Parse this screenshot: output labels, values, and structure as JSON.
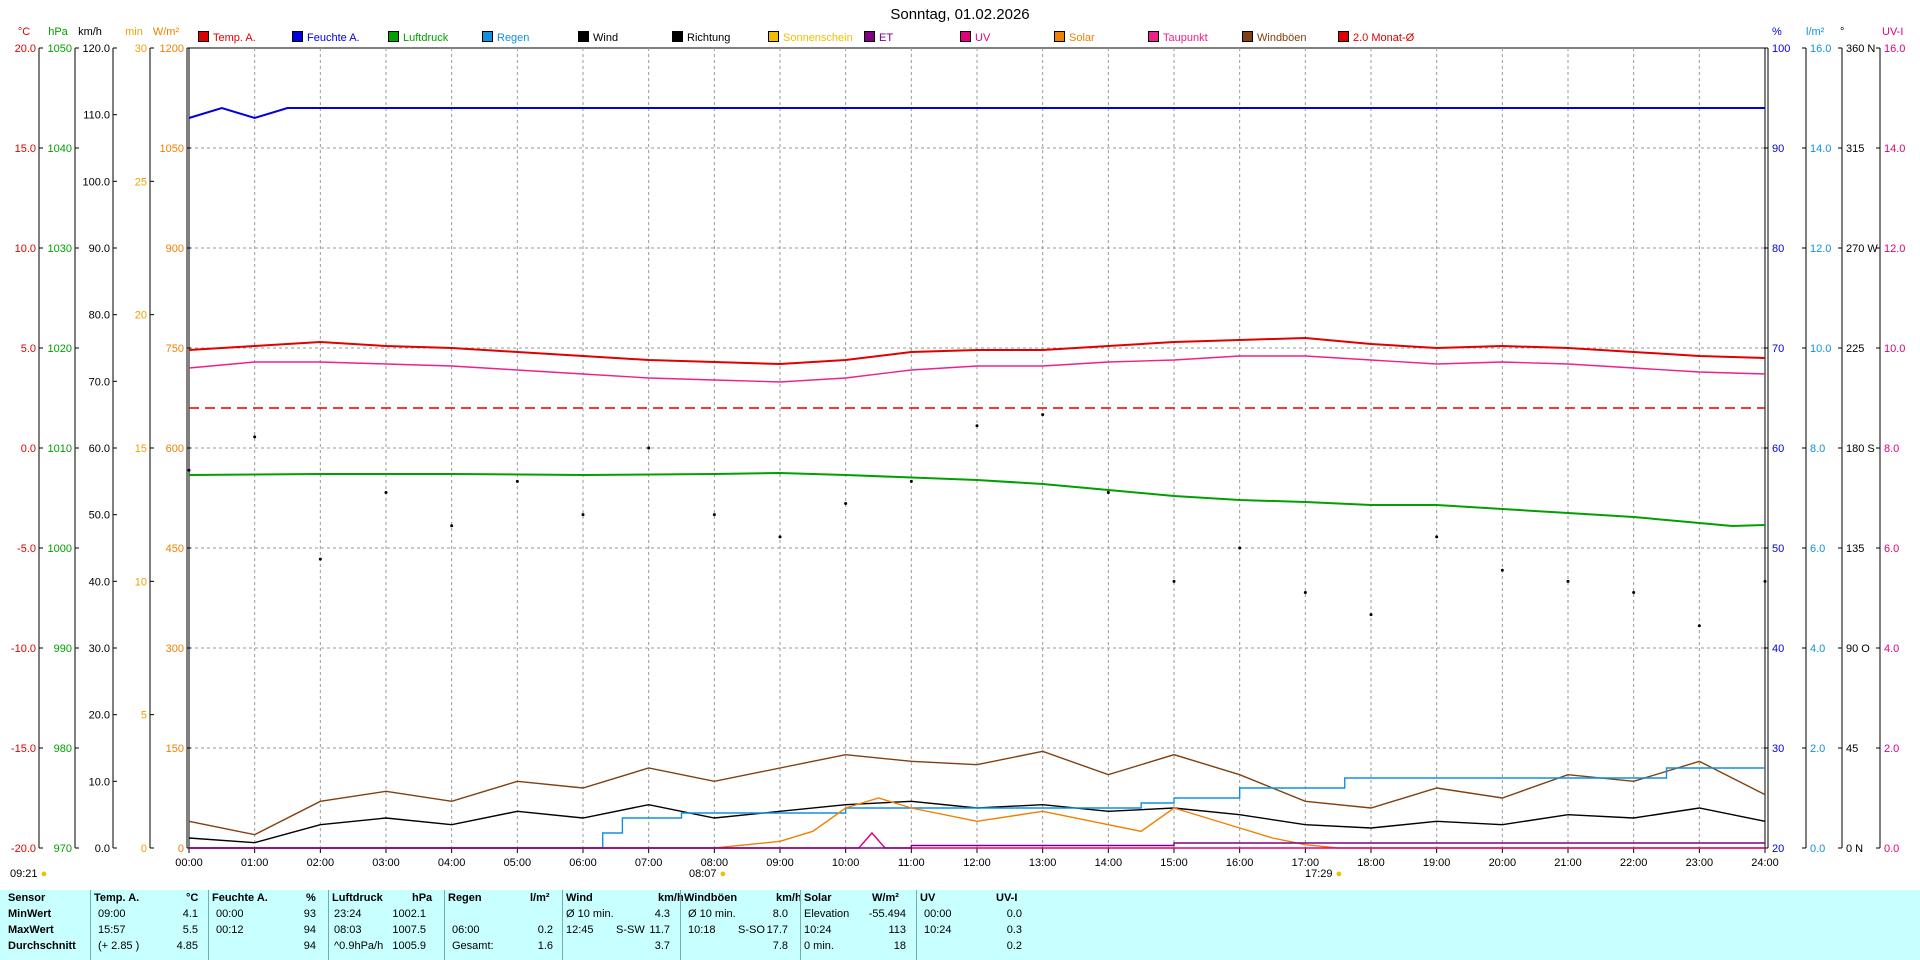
{
  "title": "Sonntag, 01.02.2026",
  "legend": [
    {
      "label": "Temp. A.",
      "color": "#e00000"
    },
    {
      "label": "Feuchte A.",
      "color": "#0000e0"
    },
    {
      "label": "Luftdruck",
      "color": "#00a000"
    },
    {
      "label": "Regen",
      "color": "#1090e0"
    },
    {
      "label": "Wind",
      "color": "#000000"
    },
    {
      "label": "Richtung",
      "color": "#000000"
    },
    {
      "label": "Sonnenschein",
      "color": "#f0c000"
    },
    {
      "label": "ET",
      "color": "#800080"
    },
    {
      "label": "UV",
      "color": "#e0007a"
    },
    {
      "label": "Solar",
      "color": "#f08000"
    },
    {
      "label": "Taupunkt",
      "color": "#f0208a"
    },
    {
      "label": "Windböen",
      "color": "#804010"
    },
    {
      "label": "2.0 Monat-Ø",
      "color": "#e00000"
    }
  ],
  "axis_units": {
    "temp": "°C",
    "hpa": "hPa",
    "kmh": "km/h",
    "min": "min",
    "wm2": "W/m²",
    "pct": "%",
    "lm2": "l/m²",
    "deg": "°",
    "uvi": "UV-I"
  },
  "sun": {
    "sunrise": "08:07",
    "sunset": "17:29",
    "now": "09:21"
  },
  "chart_data": {
    "type": "line",
    "x_label": "",
    "x_ticks": [
      "00:00",
      "01:00",
      "02:00",
      "03:00",
      "04:00",
      "05:00",
      "06:00",
      "07:00",
      "08:00",
      "09:00",
      "10:00",
      "11:00",
      "12:00",
      "13:00",
      "14:00",
      "15:00",
      "16:00",
      "17:00",
      "18:00",
      "19:00",
      "20:00",
      "21:00",
      "22:00",
      "23:00",
      "24:00"
    ],
    "axes": {
      "temp": {
        "ticks": [
          "20.0",
          "15.0",
          "10.0",
          "5.0",
          "0.0",
          "-5.0",
          "-10.0",
          "-15.0",
          "-20.0"
        ],
        "range": [
          -20,
          20
        ]
      },
      "hpa": {
        "ticks": [
          "1050",
          "1040",
          "1030",
          "1020",
          "1010",
          "1000",
          "990",
          "980",
          "970"
        ],
        "range": [
          970,
          1050
        ]
      },
      "kmh": {
        "ticks": [
          "120.0",
          "110.0",
          "100.0",
          "90.0",
          "80.0",
          "70.0",
          "60.0",
          "50.0",
          "40.0",
          "30.0",
          "20.0",
          "10.0",
          "0.0"
        ],
        "range": [
          0,
          120
        ]
      },
      "min": {
        "ticks": [
          "30",
          "25",
          "20",
          "15",
          "10",
          "5",
          "0"
        ],
        "range": [
          0,
          30
        ]
      },
      "wm2": {
        "ticks": [
          "1200",
          "1050",
          "900",
          "750",
          "600",
          "450",
          "300",
          "150",
          "0"
        ],
        "range": [
          0,
          1200
        ]
      },
      "pct": {
        "ticks": [
          "100",
          "90",
          "80",
          "70",
          "60",
          "50",
          "40",
          "30",
          "20"
        ],
        "range": [
          20,
          100
        ]
      },
      "lm2": {
        "ticks": [
          "16.0",
          "14.0",
          "12.0",
          "10.0",
          "8.0",
          "6.0",
          "4.0",
          "2.0",
          "0.0"
        ],
        "range": [
          0,
          16
        ]
      },
      "deg": {
        "ticks": [
          "360 N",
          "315",
          "270 W",
          "225",
          "180 S",
          "135",
          "90 O",
          "45",
          "0 N"
        ],
        "range": [
          0,
          360
        ]
      },
      "uvi": {
        "ticks": [
          "16.0",
          "14.0",
          "12.0",
          "10.0",
          "8.0",
          "6.0",
          "4.0",
          "2.0",
          "0.0"
        ],
        "range": [
          0,
          16
        ]
      }
    },
    "series": [
      {
        "name": "Temp. A.",
        "axis": "temp",
        "x": [
          0,
          1,
          2,
          3,
          4,
          5,
          6,
          7,
          8,
          9,
          10,
          11,
          12,
          13,
          14,
          15,
          16,
          17,
          18,
          19,
          20,
          21,
          22,
          23,
          24
        ],
        "values": [
          4.9,
          5.1,
          5.3,
          5.1,
          5.0,
          4.8,
          4.6,
          4.4,
          4.3,
          4.2,
          4.4,
          4.8,
          4.9,
          4.9,
          5.1,
          5.3,
          5.4,
          5.5,
          5.2,
          5.0,
          5.1,
          5.0,
          4.8,
          4.6,
          4.5
        ]
      },
      {
        "name": "Taupunkt",
        "axis": "temp",
        "x": [
          0,
          1,
          2,
          3,
          4,
          5,
          6,
          7,
          8,
          9,
          10,
          11,
          12,
          13,
          14,
          15,
          16,
          17,
          18,
          19,
          20,
          21,
          22,
          23,
          24
        ],
        "values": [
          4.0,
          4.3,
          4.3,
          4.2,
          4.1,
          3.9,
          3.7,
          3.5,
          3.4,
          3.3,
          3.5,
          3.9,
          4.1,
          4.1,
          4.3,
          4.4,
          4.6,
          4.6,
          4.4,
          4.2,
          4.3,
          4.2,
          4.0,
          3.8,
          3.7
        ]
      },
      {
        "name": "2.0 Monat-Ø",
        "axis": "temp",
        "x": [
          0,
          24
        ],
        "values": [
          2.0,
          2.0
        ]
      },
      {
        "name": "Feuchte A.",
        "axis": "pct",
        "x": [
          0,
          0.5,
          1,
          1.5,
          24
        ],
        "values": [
          93,
          94,
          93,
          94,
          94
        ]
      },
      {
        "name": "Luftdruck",
        "axis": "hpa",
        "x": [
          0,
          2,
          4,
          6,
          8,
          9,
          10,
          12,
          13,
          14,
          15,
          16,
          17,
          18,
          19,
          20,
          21,
          22,
          23,
          23.5,
          24
        ],
        "values": [
          1007.3,
          1007.4,
          1007.4,
          1007.3,
          1007.4,
          1007.5,
          1007.3,
          1006.8,
          1006.4,
          1005.8,
          1005.2,
          1004.8,
          1004.6,
          1004.3,
          1004.3,
          1003.9,
          1003.5,
          1003.1,
          1002.5,
          1002.2,
          1002.3
        ]
      },
      {
        "name": "Wind",
        "axis": "kmh",
        "x": [
          0,
          1,
          2,
          3,
          4,
          5,
          6,
          7,
          8,
          9,
          10,
          11,
          12,
          13,
          14,
          15,
          16,
          17,
          18,
          19,
          20,
          21,
          22,
          23,
          24
        ],
        "values": [
          1.5,
          0.8,
          3.5,
          4.5,
          3.5,
          5.5,
          4.5,
          6.5,
          4.5,
          5.5,
          6.5,
          7.0,
          6.0,
          6.5,
          5.5,
          6.0,
          5.0,
          3.5,
          3.0,
          4.0,
          3.5,
          5.0,
          4.5,
          6.0,
          4.0
        ]
      },
      {
        "name": "Windböen",
        "axis": "kmh",
        "x": [
          0,
          1,
          2,
          3,
          4,
          5,
          6,
          7,
          8,
          9,
          10,
          11,
          12,
          13,
          14,
          15,
          16,
          17,
          18,
          19,
          20,
          21,
          22,
          23,
          24
        ],
        "values": [
          4.0,
          2.0,
          7.0,
          8.5,
          7.0,
          10.0,
          9.0,
          12.0,
          10.0,
          12.0,
          14.0,
          13.0,
          12.5,
          14.5,
          11.0,
          14.0,
          11.0,
          7.0,
          6.0,
          9.0,
          7.5,
          11.0,
          10.0,
          13.0,
          8.0
        ]
      },
      {
        "name": "Regen",
        "axis": "lm2",
        "x": [
          0,
          6,
          6.3,
          6.6,
          7.5,
          9,
          10,
          11.5,
          13,
          14.5,
          15,
          16,
          17,
          17.6,
          18,
          20,
          21,
          22,
          22.5,
          24
        ],
        "values": [
          0,
          0,
          0.3,
          0.6,
          0.7,
          0.7,
          0.8,
          0.8,
          0.8,
          0.9,
          1.0,
          1.2,
          1.2,
          1.4,
          1.4,
          1.4,
          1.4,
          1.4,
          1.6,
          1.6
        ]
      },
      {
        "name": "Solar",
        "axis": "wm2",
        "x": [
          0,
          8,
          8.5,
          9,
          9.5,
          10,
          10.5,
          11,
          12,
          13,
          14,
          14.5,
          15,
          15.5,
          16,
          16.5,
          17,
          17.5,
          24
        ],
        "values": [
          0,
          0,
          5,
          10,
          25,
          60,
          75,
          60,
          40,
          55,
          35,
          25,
          60,
          45,
          30,
          15,
          5,
          0,
          0
        ]
      },
      {
        "name": "UV",
        "axis": "uvi",
        "x": [
          0,
          10.2,
          10.4,
          10.6,
          24
        ],
        "values": [
          0,
          0,
          0.3,
          0,
          0
        ]
      },
      {
        "name": "ET",
        "axis": "lm2",
        "x": [
          0,
          8,
          11,
          15,
          24
        ],
        "values": [
          0,
          0,
          0.05,
          0.1,
          0.1
        ]
      },
      {
        "name": "Richtung",
        "axis": "deg",
        "x": [
          0,
          1,
          2,
          3,
          4,
          5,
          6,
          7,
          8,
          9,
          10,
          11,
          12,
          13,
          14,
          15,
          16,
          17,
          18,
          19,
          20,
          21,
          22,
          23,
          24
        ],
        "values": [
          170,
          185,
          130,
          160,
          145,
          165,
          150,
          180,
          150,
          140,
          155,
          165,
          190,
          195,
          160,
          120,
          135,
          115,
          105,
          140,
          125,
          120,
          115,
          100,
          120
        ]
      }
    ]
  },
  "stats": {
    "headers": {
      "sensor": "Sensor",
      "temp": "Temp. A.",
      "temp_unit": "°C",
      "hum": "Feuchte A.",
      "hum_unit": "%",
      "press": "Luftdruck",
      "press_unit": "hPa",
      "rain": "Regen",
      "rain_unit": "l/m²",
      "wind": "Wind",
      "wind_unit": "km/h",
      "gust": "Windböen",
      "gust_unit": "km/h",
      "solar": "Solar",
      "solar_unit": "W/m²",
      "uv": "UV",
      "uv_unit": "UV-I"
    },
    "rows": [
      {
        "label": "MinWert",
        "temp_time": "09:00",
        "temp_val": "4.1",
        "hum_time": "00:00",
        "hum_val": "93",
        "press_time": "23:24",
        "press_val": "1002.1",
        "rain_a": "",
        "rain_b": "",
        "wind_a": "Ø 10 min.",
        "wind_b": "4.3",
        "gust_a": "Ø 10 min.",
        "gust_b": "8.0",
        "solar_a": "Elevation",
        "solar_b": "-55.494",
        "uv_a": "00:00",
        "uv_b": "0.0"
      },
      {
        "label": "MaxWert",
        "temp_time": "15:57",
        "temp_val": "5.5",
        "hum_time": "00:12",
        "hum_val": "94",
        "press_time": "08:03",
        "press_val": "1007.5",
        "rain_a": "06:00",
        "rain_b": "0.2",
        "wind_a": "12:45",
        "wind_dir": "S-SW",
        "wind_b": "11.7",
        "gust_a": "10:18",
        "gust_dir": "S-SO",
        "gust_b": "17.7",
        "solar_a": "10:24",
        "solar_b": "113",
        "uv_a": "10:24",
        "uv_b": "0.3"
      },
      {
        "label": "Durchschnitt",
        "temp_time": "(+ 2.85 )",
        "temp_val": "4.85",
        "hum_time": "",
        "hum_val": "94",
        "press_time": "^0.9hPa/h",
        "press_val": "1005.9",
        "rain_a": "Gesamt:",
        "rain_b": "1.6",
        "wind_a": "",
        "wind_b": "3.7",
        "gust_a": "",
        "gust_b": "7.8",
        "solar_a": "0 min.",
        "solar_b": "18",
        "uv_a": "",
        "uv_b": "0.2"
      }
    ]
  }
}
